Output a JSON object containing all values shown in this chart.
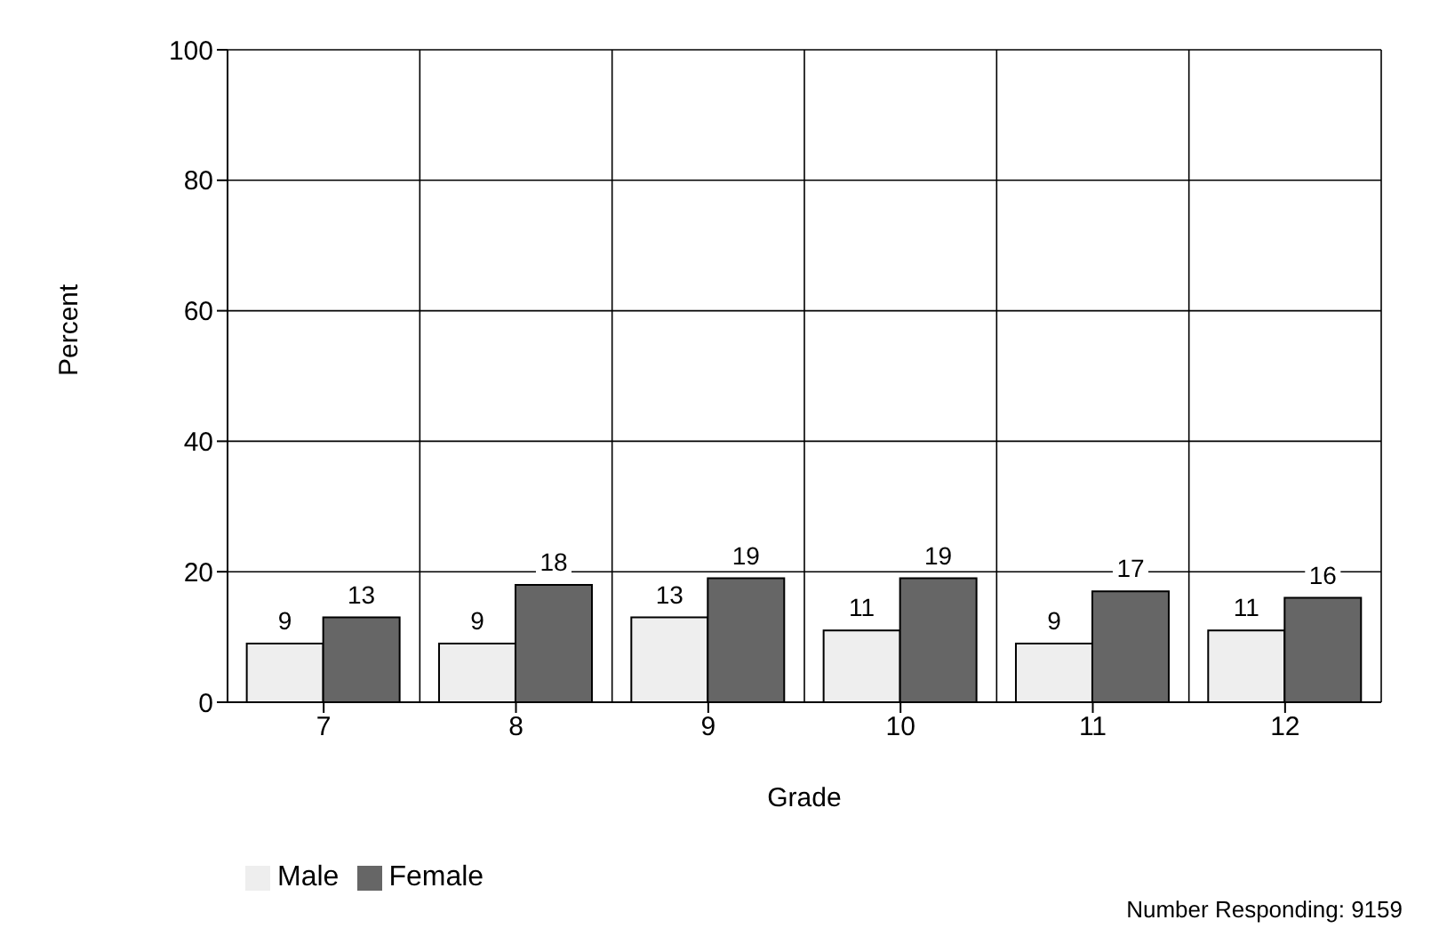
{
  "chart_data": {
    "type": "bar",
    "xlabel": "Grade",
    "ylabel": "Percent",
    "categories": [
      "7",
      "8",
      "9",
      "10",
      "11",
      "12"
    ],
    "series": [
      {
        "name": "Male",
        "color": "#eeeeee",
        "values": [
          9,
          9,
          13,
          11,
          9,
          11
        ]
      },
      {
        "name": "Female",
        "color": "#666666",
        "values": [
          13,
          18,
          19,
          19,
          17,
          16
        ]
      }
    ],
    "ylim": [
      0,
      100
    ],
    "yticks": [
      0,
      20,
      40,
      60,
      80,
      100
    ],
    "grid": true,
    "legend": "bottom left",
    "data_labels": true,
    "annotations": [
      "Number Responding: 9159"
    ]
  }
}
